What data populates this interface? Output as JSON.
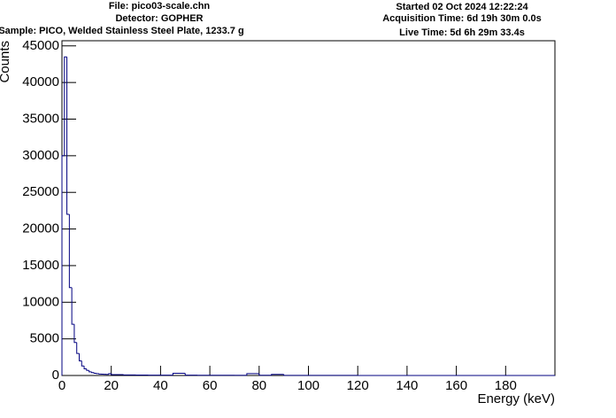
{
  "chart_data": {
    "type": "histogram",
    "header_left": [
      "File: pico03-scale.chn",
      "Detector: GOPHER",
      "Sample: PICO, Welded Stainless Steel Plate, 1233.7 g"
    ],
    "header_right": [
      "Started 02 Oct 2024 12:22:24",
      "Acquisition Time: 6d 19h 30m 0.0s",
      "Live Time: 5d 6h 29m 33.4s"
    ],
    "xlabel": "Energy (keV)",
    "ylabel": "Counts",
    "bins": [
      0,
      1,
      2,
      3,
      4,
      5,
      6,
      7,
      8,
      9,
      10,
      11,
      12,
      13,
      14,
      15,
      16,
      17,
      18,
      19,
      20,
      25,
      30,
      35,
      40,
      45,
      50,
      55,
      60,
      65,
      70,
      75,
      80,
      85,
      90,
      95,
      100,
      110,
      120,
      130,
      140,
      150,
      160,
      170,
      180,
      190,
      200
    ],
    "counts": [
      30000,
      43500,
      22000,
      12000,
      7000,
      4500,
      3000,
      2000,
      1300,
      900,
      700,
      500,
      400,
      300,
      250,
      200,
      180,
      160,
      150,
      250,
      120,
      80,
      60,
      50,
      40,
      300,
      40,
      30,
      30,
      25,
      25,
      250,
      30,
      150,
      20,
      15,
      10,
      8,
      6,
      5,
      4,
      3,
      3,
      2,
      2,
      2
    ],
    "color": "#000080",
    "xlim": [
      0,
      200
    ],
    "ylim": [
      0,
      45700
    ],
    "xticks": [
      0,
      20,
      40,
      60,
      80,
      100,
      120,
      140,
      160,
      180
    ],
    "yticks": [
      0,
      5000,
      10000,
      15000,
      20000,
      25000,
      30000,
      35000,
      40000,
      45000
    ]
  }
}
